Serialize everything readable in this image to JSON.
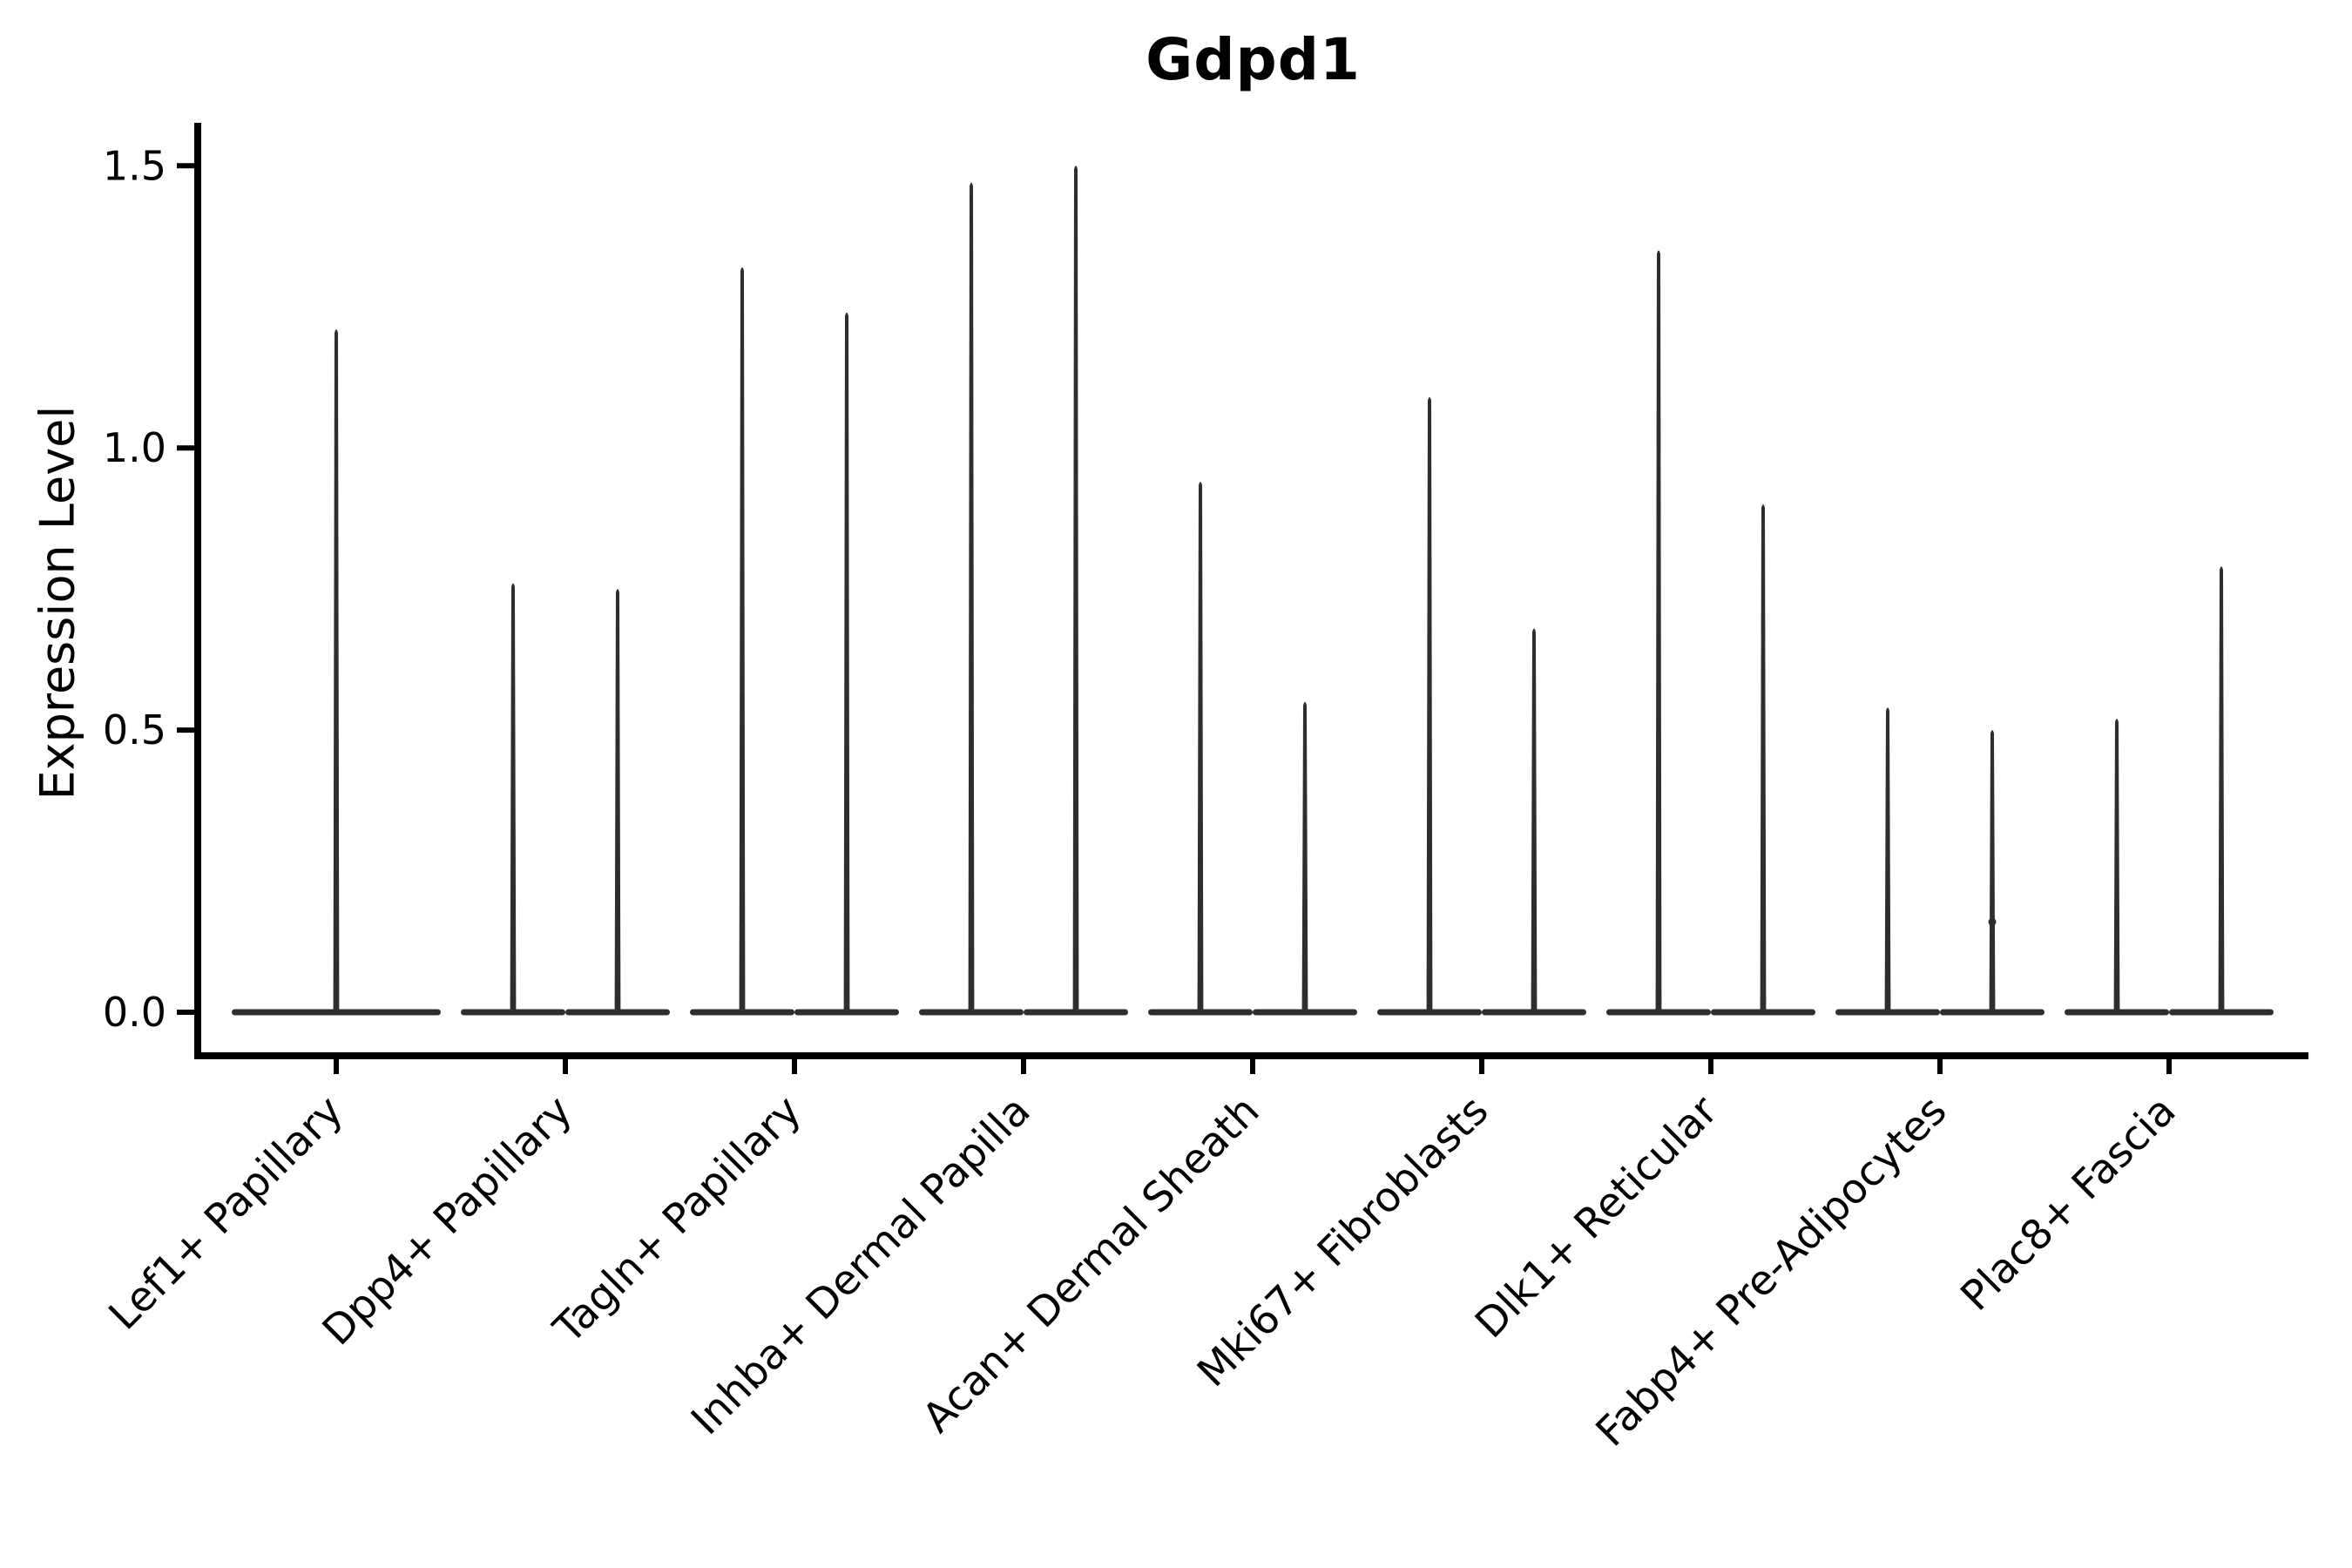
{
  "page": {
    "background": "#ffffff"
  },
  "chart_data": {
    "type": "violin",
    "title": "Gdpd1",
    "xlabel": "",
    "ylabel": "Expression Level",
    "ylim": [
      0,
      1.58
    ],
    "grid": false,
    "legend": false,
    "violin_color": "#2e2e2e",
    "axis_color": "#000000",
    "yticks": [
      {
        "value": 0.0,
        "label": "0.0"
      },
      {
        "value": 0.5,
        "label": "0.5"
      },
      {
        "value": 1.0,
        "label": "1.0"
      },
      {
        "value": 1.5,
        "label": "1.5"
      }
    ],
    "categories": [
      "Lef1+ Papillary",
      "Dpp4+ Papillary",
      "Tagln+ Papillary",
      "Inhba+ Dermal Papilla",
      "Acan+ Dermal Sheath",
      "Mki67+ Fibroblasts",
      "Dlk1+ Reticular",
      "Fabp4+ Pre-Adipocytes",
      "Plac8+ Fascia"
    ],
    "groups": [
      {
        "label": "Lef1+ Papillary",
        "violins": [
          {
            "max": 1.21
          }
        ]
      },
      {
        "label": "Dpp4+ Papillary",
        "violins": [
          {
            "max": 0.76
          },
          {
            "max": 0.75
          }
        ]
      },
      {
        "label": "Tagln+ Papillary",
        "violins": [
          {
            "max": 1.32
          },
          {
            "max": 1.24
          }
        ]
      },
      {
        "label": "Inhba+ Dermal Papilla",
        "violins": [
          {
            "max": 1.47
          },
          {
            "max": 1.5
          }
        ]
      },
      {
        "label": "Acan+ Dermal Sheath",
        "violins": [
          {
            "max": 0.94
          },
          {
            "max": 0.55
          }
        ]
      },
      {
        "label": "Mki67+ Fibroblasts",
        "violins": [
          {
            "max": 1.09
          },
          {
            "max": 0.68
          }
        ]
      },
      {
        "label": "Dlk1+ Reticular",
        "violins": [
          {
            "max": 1.35
          },
          {
            "max": 0.9
          }
        ]
      },
      {
        "label": "Fabp4+ Pre-Adipocytes",
        "violins": [
          {
            "max": 0.54
          },
          {
            "max": 0.5,
            "dot": 0.16
          }
        ]
      },
      {
        "label": "Plac8+ Fascia",
        "violins": [
          {
            "max": 0.52
          },
          {
            "max": 0.79
          }
        ]
      }
    ]
  }
}
